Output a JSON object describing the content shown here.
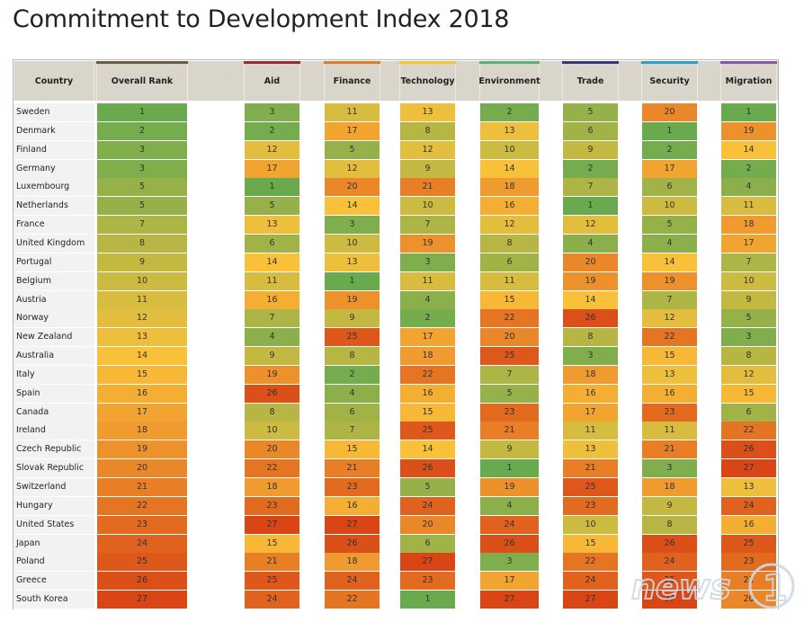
{
  "title": "Commitment to Development Index 2018",
  "chart_data": {
    "type": "table",
    "title": "Commitment to Development Index 2018",
    "columns": [
      "Country",
      "Overall Rank",
      "Aid",
      "Finance",
      "Technology",
      "Environment",
      "Trade",
      "Security",
      "Migration"
    ],
    "rank_scale": {
      "min": 1,
      "max": 27,
      "low_color": "#6aaa4f",
      "mid_color": "#f9c13a",
      "high_color": "#d94515"
    },
    "rows": [
      {
        "country": "Sweden",
        "values": [
          1,
          3,
          11,
          13,
          2,
          5,
          20,
          1
        ]
      },
      {
        "country": "Denmark",
        "values": [
          2,
          2,
          17,
          8,
          13,
          6,
          1,
          19
        ]
      },
      {
        "country": "Finland",
        "values": [
          3,
          12,
          5,
          12,
          10,
          9,
          2,
          14
        ]
      },
      {
        "country": "Germany",
        "values": [
          3,
          17,
          12,
          9,
          14,
          2,
          17,
          2
        ]
      },
      {
        "country": "Luxembourg",
        "values": [
          5,
          1,
          20,
          21,
          18,
          7,
          6,
          4
        ]
      },
      {
        "country": "Netherlands",
        "values": [
          5,
          5,
          14,
          10,
          16,
          1,
          10,
          11
        ]
      },
      {
        "country": "France",
        "values": [
          7,
          13,
          3,
          7,
          12,
          12,
          5,
          18
        ]
      },
      {
        "country": "United Kingdom",
        "values": [
          8,
          6,
          10,
          19,
          8,
          4,
          4,
          17
        ]
      },
      {
        "country": "Portugal",
        "values": [
          9,
          14,
          13,
          3,
          6,
          20,
          14,
          7
        ]
      },
      {
        "country": "Belgium",
        "values": [
          10,
          11,
          1,
          11,
          11,
          19,
          19,
          10
        ]
      },
      {
        "country": "Austria",
        "values": [
          11,
          16,
          19,
          4,
          15,
          14,
          7,
          9
        ]
      },
      {
        "country": "Norway",
        "values": [
          12,
          7,
          9,
          2,
          22,
          26,
          12,
          5
        ]
      },
      {
        "country": "New Zealand",
        "values": [
          13,
          4,
          25,
          17,
          20,
          8,
          22,
          3
        ]
      },
      {
        "country": "Australia",
        "values": [
          14,
          9,
          8,
          18,
          25,
          3,
          15,
          8
        ]
      },
      {
        "country": "Italy",
        "values": [
          15,
          19,
          2,
          22,
          7,
          18,
          13,
          12
        ]
      },
      {
        "country": "Spain",
        "values": [
          16,
          26,
          4,
          16,
          5,
          16,
          16,
          15
        ]
      },
      {
        "country": "Canada",
        "values": [
          17,
          8,
          6,
          15,
          23,
          17,
          23,
          6
        ]
      },
      {
        "country": "Ireland",
        "values": [
          18,
          10,
          7,
          25,
          21,
          11,
          11,
          22
        ]
      },
      {
        "country": "Czech Republic",
        "values": [
          19,
          20,
          15,
          14,
          9,
          13,
          21,
          26
        ]
      },
      {
        "country": "Slovak Republic",
        "values": [
          20,
          22,
          21,
          26,
          1,
          21,
          3,
          27
        ]
      },
      {
        "country": "Switzerland",
        "values": [
          21,
          18,
          23,
          5,
          19,
          25,
          18,
          13
        ]
      },
      {
        "country": "Hungary",
        "values": [
          22,
          23,
          16,
          24,
          4,
          23,
          9,
          24
        ]
      },
      {
        "country": "United States",
        "values": [
          23,
          27,
          27,
          20,
          24,
          10,
          8,
          16
        ]
      },
      {
        "country": "Japan",
        "values": [
          24,
          15,
          26,
          6,
          26,
          15,
          26,
          25
        ]
      },
      {
        "country": "Poland",
        "values": [
          25,
          21,
          18,
          27,
          3,
          22,
          24,
          23
        ]
      },
      {
        "country": "Greece",
        "values": [
          26,
          25,
          24,
          23,
          17,
          24,
          25,
          21
        ]
      },
      {
        "country": "South Korea",
        "values": [
          27,
          24,
          22,
          1,
          27,
          27,
          27,
          20
        ]
      }
    ],
    "column_accent_colors": [
      "#6b5b45",
      "#a0282b",
      "#e07b2a",
      "#f2c53d",
      "#5ab070",
      "#2f3a7a",
      "#2a9fc8",
      "#8a55a8"
    ]
  },
  "watermark": {
    "text": "news1"
  }
}
